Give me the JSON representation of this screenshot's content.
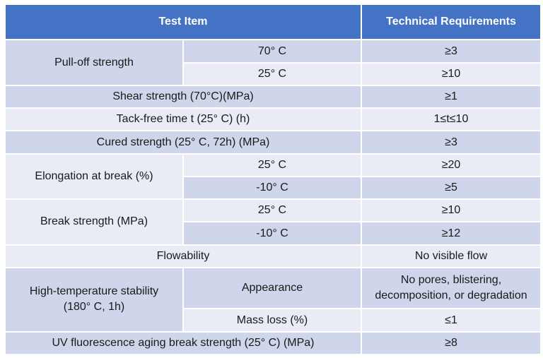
{
  "headers": {
    "test_item": "Test Item",
    "requirements": "Technical Requirements"
  },
  "rows": {
    "pull_off": {
      "label": "Pull-off strength",
      "c1": "70° C",
      "r1": "≥3",
      "c2": "25° C",
      "r2": "≥10"
    },
    "shear": {
      "label": "Shear strength (70°C)(MPa)",
      "r": "≥1"
    },
    "tack_free": {
      "label": "Tack-free time t (25° C) (h)",
      "r": "1≤t≤10"
    },
    "cured": {
      "label": "Cured strength (25° C, 72h) (MPa)",
      "r": "≥3"
    },
    "elongation": {
      "label": "Elongation at break (%)",
      "c1": "25° C",
      "r1": "≥20",
      "c2": "-10° C",
      "r2": "≥5"
    },
    "break": {
      "label": "Break strength (MPa)",
      "c1": "25° C",
      "r1": "≥10",
      "c2": "-10° C",
      "r2": "≥12"
    },
    "flowability": {
      "label": "Flowability",
      "r": "No visible flow"
    },
    "high_temp": {
      "label_line1": "High-temperature stability",
      "label_line2": "(180° C, 1h)",
      "c1": "Appearance",
      "r1_line1": "No pores, blistering,",
      "r1_line2": "decomposition, or degradation",
      "c2": "Mass loss (%)",
      "r2": "≤1"
    },
    "uv": {
      "label": "UV fluorescence aging break strength (25° C) (MPa)",
      "r": "≥8"
    }
  }
}
